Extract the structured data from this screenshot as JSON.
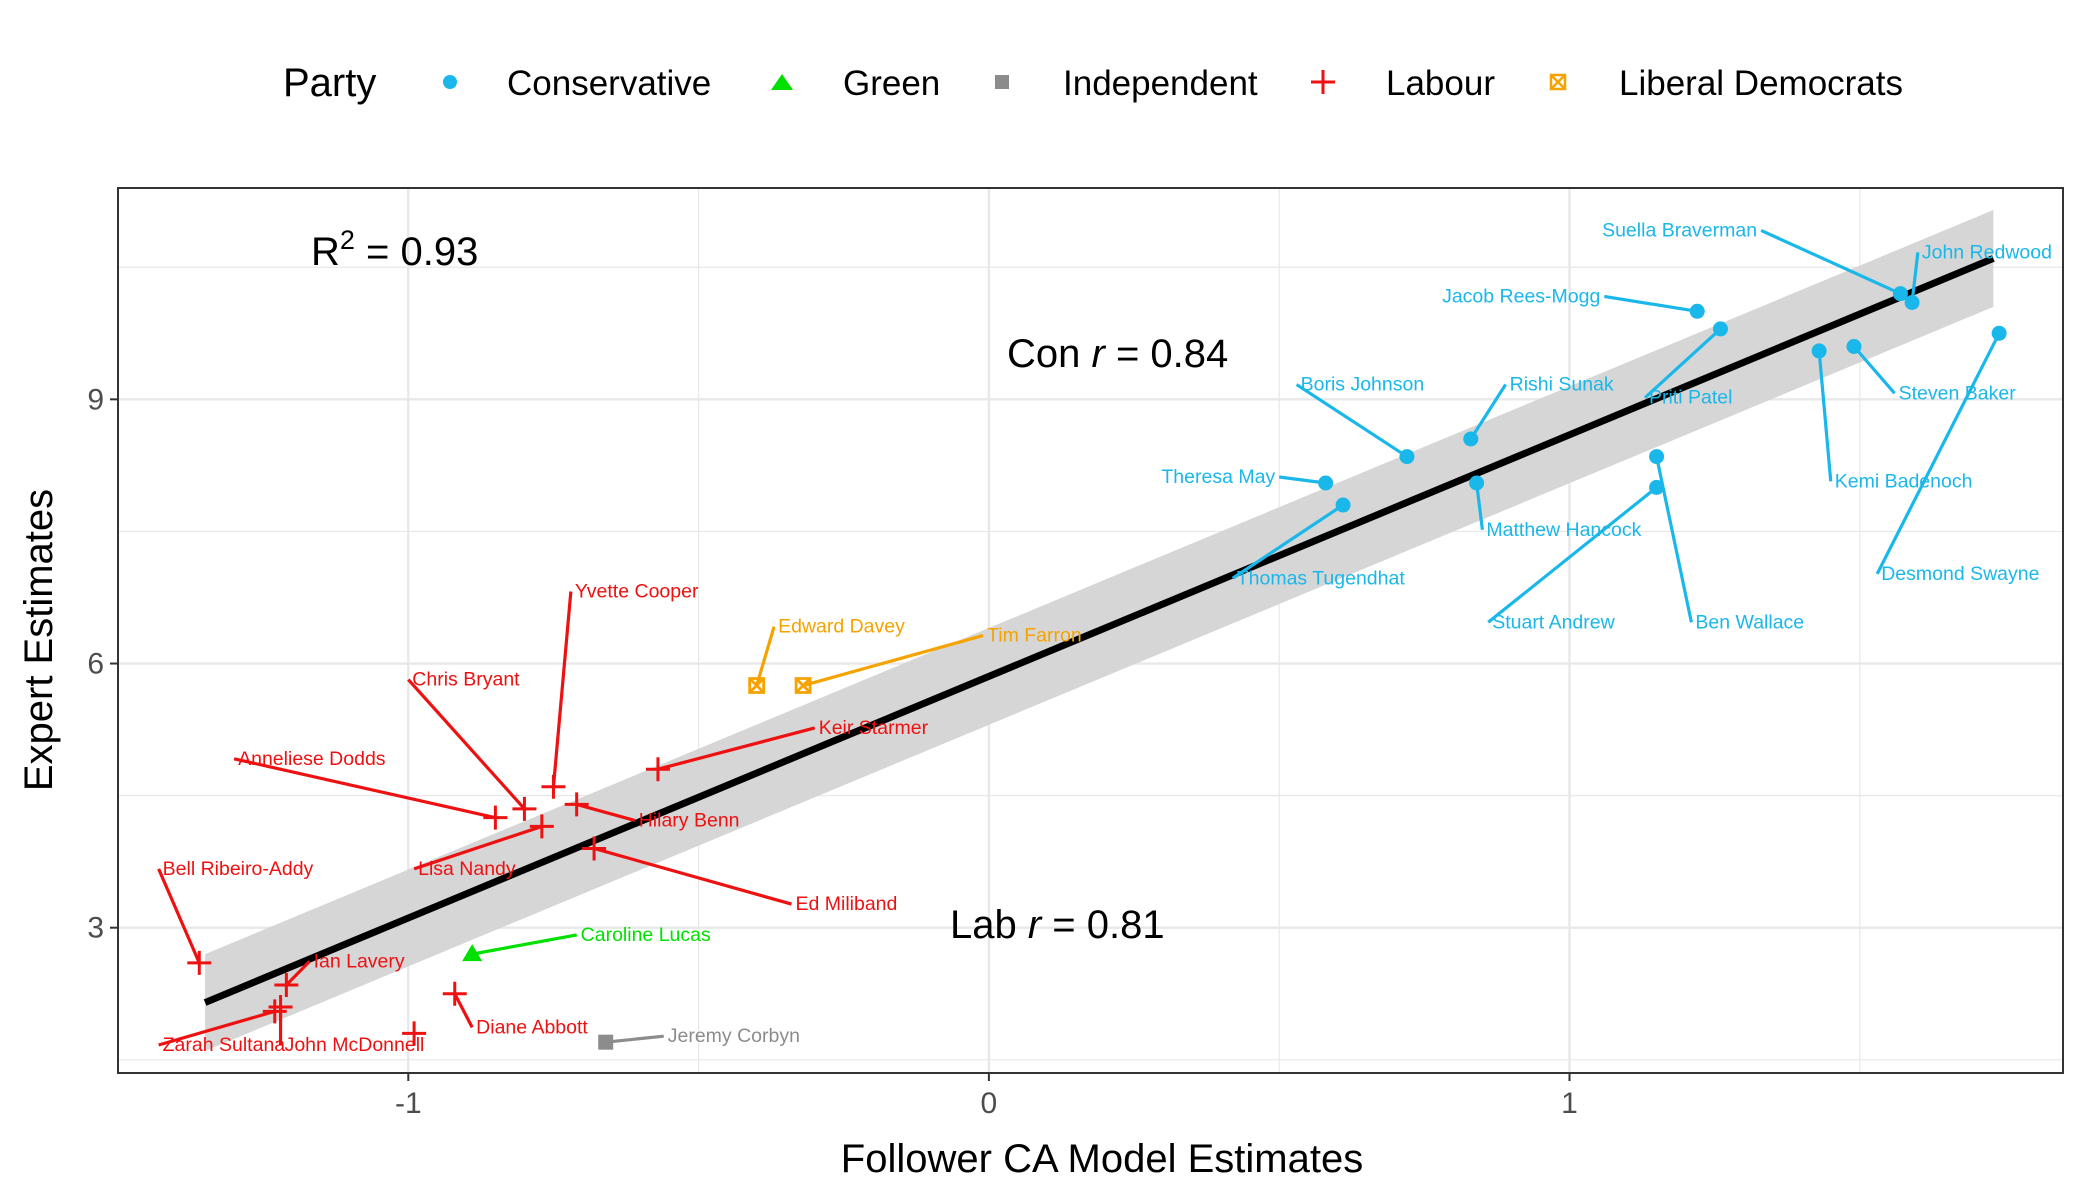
{
  "colors": {
    "Conservative": "#1ab7ea",
    "Green": "#00e000",
    "Independent": "#8c8c8c",
    "Labour": "#ee1111",
    "Liberal Democrats": "#f5a300",
    "fit_line": "#000000",
    "ribbon": "#d4d4d4",
    "grid": "#e8e8e8",
    "panel_border": "#333333"
  },
  "legend": {
    "title": "Party",
    "position": "top",
    "entries": [
      {
        "label": "Conservative",
        "shape": "circle"
      },
      {
        "label": "Green",
        "shape": "triangle"
      },
      {
        "label": "Independent",
        "shape": "square"
      },
      {
        "label": "Labour",
        "shape": "cross"
      },
      {
        "label": "Liberal Democrats",
        "shape": "boxed-x"
      }
    ]
  },
  "annotations": {
    "r2_prefix": "R",
    "r2_sup": "2",
    "r2_value": " = 0.93",
    "con_prefix": "Con ",
    "con_r": "r",
    "con_value": " = 0.84",
    "lab_prefix": "Lab ",
    "lab_r": "r",
    "lab_value": " = 0.81"
  },
  "chart_data": {
    "type": "scatter",
    "xlabel": "Follower CA Model Estimates",
    "ylabel": "Expert Estimates",
    "xlim": [
      -1.5,
      1.85
    ],
    "ylim": [
      1.35,
      11.4
    ],
    "x_ticks": [
      -1,
      0,
      1
    ],
    "x_tick_labels": [
      "-1",
      "0",
      "1"
    ],
    "y_ticks": [
      3,
      6,
      9
    ],
    "y_tick_labels": [
      "3",
      "6",
      "9"
    ],
    "grid": true,
    "fit": {
      "x": [
        -1.35,
        1.73
      ],
      "y": [
        2.15,
        10.6
      ],
      "ribbon_halfwidth": 0.55
    },
    "series": [
      {
        "name": "Conservative",
        "points": [
          {
            "label": "Suella Braverman",
            "x": 1.57,
            "y": 10.2
          },
          {
            "label": "John Redwood",
            "x": 1.59,
            "y": 10.1
          },
          {
            "label": "Jacob Rees-Mogg",
            "x": 1.22,
            "y": 10.0
          },
          {
            "label": "Priti Patel",
            "x": 1.26,
            "y": 9.8
          },
          {
            "label": "Steven Baker",
            "x": 1.49,
            "y": 9.6
          },
          {
            "label": "Kemi Badenoch",
            "x": 1.43,
            "y": 9.55
          },
          {
            "label": "Desmond Swayne",
            "x": 1.74,
            "y": 9.75
          },
          {
            "label": "Rishi Sunak",
            "x": 0.83,
            "y": 8.55
          },
          {
            "label": "Boris Johnson",
            "x": 0.72,
            "y": 8.35
          },
          {
            "label": "Theresa May",
            "x": 0.58,
            "y": 8.05
          },
          {
            "label": "Thomas Tugendhat",
            "x": 0.61,
            "y": 7.8
          },
          {
            "label": "Matthew Hancock",
            "x": 0.84,
            "y": 8.05
          },
          {
            "label": "Stuart Andrew",
            "x": 1.15,
            "y": 8.0
          },
          {
            "label": "Ben Wallace",
            "x": 1.15,
            "y": 8.35
          }
        ]
      },
      {
        "name": "Green",
        "points": [
          {
            "label": "Caroline Lucas",
            "x": -0.89,
            "y": 2.7
          }
        ]
      },
      {
        "name": "Independent",
        "points": [
          {
            "label": "Jeremy Corbyn",
            "x": -0.66,
            "y": 1.7
          }
        ]
      },
      {
        "name": "Labour",
        "points": [
          {
            "label": "Yvette Cooper",
            "x": -0.75,
            "y": 4.6
          },
          {
            "label": "Chris Bryant",
            "x": -0.8,
            "y": 4.35
          },
          {
            "label": "Anneliese Dodds",
            "x": -0.85,
            "y": 4.25
          },
          {
            "label": "Keir Starmer",
            "x": -0.57,
            "y": 4.8
          },
          {
            "label": "Hilary Benn",
            "x": -0.71,
            "y": 4.4
          },
          {
            "label": "Lisa Nandy",
            "x": -0.77,
            "y": 4.15
          },
          {
            "label": "Ed Miliband",
            "x": -0.68,
            "y": 3.9
          },
          {
            "label": "Bell Ribeiro-Addy",
            "x": -1.36,
            "y": 2.6
          },
          {
            "label": "Ian Lavery",
            "x": -1.21,
            "y": 2.35
          },
          {
            "label": "John McDonnell",
            "x": -1.22,
            "y": 2.1
          },
          {
            "label": "Zarah Sultana",
            "x": -1.23,
            "y": 2.05
          },
          {
            "label": "Diane Abbott",
            "x": -0.92,
            "y": 2.25
          },
          {
            "label": "Labour MP (unlabelled)",
            "x": -0.99,
            "y": 1.8
          }
        ]
      },
      {
        "name": "Liberal Democrats",
        "points": [
          {
            "label": "Edward Davey",
            "x": -0.4,
            "y": 5.75
          },
          {
            "label": "Tim Farron",
            "x": -0.32,
            "y": 5.75
          }
        ]
      }
    ],
    "point_labels": [
      {
        "text": "Suella Braverman",
        "party": "Conservative",
        "lx": 1.33,
        "ly": 10.85,
        "anchor": "end"
      },
      {
        "text": "John Redwood",
        "party": "Conservative",
        "lx": 1.6,
        "ly": 10.6,
        "anchor": "start"
      },
      {
        "text": "Jacob Rees-Mogg",
        "party": "Conservative",
        "lx": 1.06,
        "ly": 10.1,
        "anchor": "end"
      },
      {
        "text": "Priti Patel",
        "party": "Conservative",
        "lx": 1.13,
        "ly": 8.95,
        "anchor": "start"
      },
      {
        "text": "Steven Baker",
        "party": "Conservative",
        "lx": 1.56,
        "ly": 9.0,
        "anchor": "start"
      },
      {
        "text": "Kemi Badenoch",
        "party": "Conservative",
        "lx": 1.45,
        "ly": 8.0,
        "anchor": "start"
      },
      {
        "text": "Desmond Swayne",
        "party": "Conservative",
        "lx": 1.53,
        "ly": 6.95,
        "anchor": "start"
      },
      {
        "text": "Rishi Sunak",
        "party": "Conservative",
        "lx": 0.89,
        "ly": 9.1,
        "anchor": "start"
      },
      {
        "text": "Boris Johnson",
        "party": "Conservative",
        "lx": 0.53,
        "ly": 9.1,
        "anchor": "start"
      },
      {
        "text": "Theresa May",
        "party": "Conservative",
        "lx": 0.5,
        "ly": 8.05,
        "anchor": "end"
      },
      {
        "text": "Thomas Tugendhat",
        "party": "Conservative",
        "lx": 0.42,
        "ly": 6.9,
        "anchor": "start"
      },
      {
        "text": "Matthew Hancock",
        "party": "Conservative",
        "lx": 0.85,
        "ly": 7.45,
        "anchor": "start"
      },
      {
        "text": "Stuart Andrew",
        "party": "Conservative",
        "lx": 0.86,
        "ly": 6.4,
        "anchor": "start"
      },
      {
        "text": "Ben Wallace",
        "party": "Conservative",
        "lx": 1.21,
        "ly": 6.4,
        "anchor": "start"
      },
      {
        "text": "Caroline Lucas",
        "party": "Green",
        "lx": -0.71,
        "ly": 2.85,
        "anchor": "start"
      },
      {
        "text": "Jeremy Corbyn",
        "party": "Independent",
        "lx": -0.56,
        "ly": 1.7,
        "anchor": "start"
      },
      {
        "text": "Yvette Cooper",
        "party": "Labour",
        "lx": -0.72,
        "ly": 6.75,
        "anchor": "start"
      },
      {
        "text": "Chris Bryant",
        "party": "Labour",
        "lx": -1.0,
        "ly": 5.75,
        "anchor": "start"
      },
      {
        "text": "Anneliese Dodds",
        "party": "Labour",
        "lx": -1.3,
        "ly": 4.85,
        "anchor": "start"
      },
      {
        "text": "Keir Starmer",
        "party": "Labour",
        "lx": -0.3,
        "ly": 5.2,
        "anchor": "start"
      },
      {
        "text": "Hilary Benn",
        "party": "Labour",
        "lx": -0.61,
        "ly": 4.15,
        "anchor": "start"
      },
      {
        "text": "Lisa Nandy",
        "party": "Labour",
        "lx": -0.99,
        "ly": 3.6,
        "anchor": "start"
      },
      {
        "text": "Ed Miliband",
        "party": "Labour",
        "lx": -0.34,
        "ly": 3.2,
        "anchor": "start"
      },
      {
        "text": "Bell Ribeiro-Addy",
        "party": "Labour",
        "lx": -1.43,
        "ly": 3.6,
        "anchor": "start"
      },
      {
        "text": "Ian Lavery",
        "party": "Labour",
        "lx": -1.17,
        "ly": 2.55,
        "anchor": "start"
      },
      {
        "text": "John McDonnell",
        "party": "Labour",
        "lx": -1.22,
        "ly": 1.6,
        "anchor": "start"
      },
      {
        "text": "Zarah Sultana",
        "party": "Labour",
        "lx": -1.43,
        "ly": 1.6,
        "anchor": "start"
      },
      {
        "text": "Diane Abbott",
        "party": "Labour",
        "lx": -0.89,
        "ly": 1.8,
        "anchor": "start"
      },
      {
        "text": "Tim Farron",
        "party": "Liberal Democrats",
        "lx": -0.01,
        "ly": 6.25,
        "anchor": "start"
      },
      {
        "text": "Edward Davey",
        "party": "Liberal Democrats",
        "lx": -0.37,
        "ly": 6.35,
        "anchor": "start"
      }
    ]
  }
}
